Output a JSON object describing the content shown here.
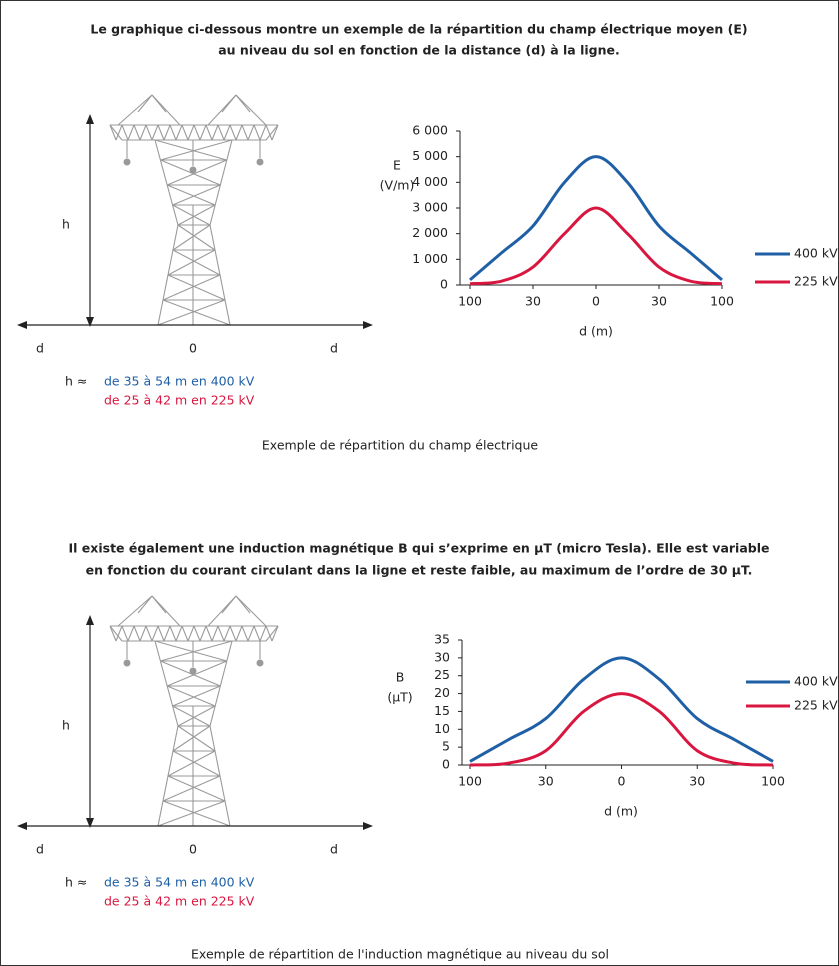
{
  "intro_1": [
    "Le graphique ci-dessous montre un exemple de la répartition du champ électrique moyen (E)",
    "au niveau du sol en fonction de la distance (d) à la ligne."
  ],
  "caption_1": "Exemple de répartition du champ électrique",
  "intro_2": [
    "Il existe également une induction magnétique B qui s’exprime en µT (micro Tesla). Elle est variable",
    "en fonction du courant circulant dans la ligne et reste faible, au maximum de l’ordre de 30 µT."
  ],
  "caption_2": "Exemple de répartition de l'induction magnétique au niveau du sol",
  "diagrams": [
    {
      "h": "h",
      "d_left": "d",
      "center": "0",
      "d_right": "d",
      "h_prefix": "h ≈",
      "h_400": "de 35 à 54 m en 400 kV",
      "h_225": "de 25 à 42 m en 225 kV"
    },
    {
      "h": "h",
      "d_left": "d",
      "center": "0",
      "d_right": "d",
      "h_prefix": "h ≈",
      "h_400": "de 35 à 54 m en 400 kV",
      "h_225": "de 25 à 42 m en 225 kV"
    }
  ],
  "chart_data": [
    {
      "type": "line",
      "ylabel": [
        "E",
        "(V/m)"
      ],
      "xlabel": "d (m)",
      "categories": [
        "100",
        null,
        "30",
        null,
        "0",
        null,
        "30",
        null,
        "100"
      ],
      "ylim": [
        0,
        6000
      ],
      "yticks": [
        0,
        {
          "value": 1000,
          "label": "1 000"
        },
        {
          "value": 2000,
          "label": "2 000"
        },
        {
          "value": 3000,
          "label": "3 000"
        },
        {
          "value": 4000,
          "label": "4 000"
        },
        {
          "value": 5000,
          "label": "5 000"
        },
        {
          "value": 6000,
          "label": "6 000"
        }
      ],
      "series": [
        {
          "name": "400 kV",
          "color": "#1f5fa6",
          "values": [
            200,
            1250,
            2300,
            4000,
            5000,
            4000,
            2300,
            1250,
            200
          ]
        },
        {
          "name": "225 kV",
          "color": "#d9163f",
          "values": [
            50,
            150,
            700,
            2000,
            3000,
            2000,
            700,
            150,
            50
          ]
        }
      ]
    },
    {
      "type": "line",
      "ylabel": [
        "B",
        "(µT)"
      ],
      "xlabel": "d (m)",
      "categories": [
        "100",
        null,
        "30",
        null,
        "0",
        null,
        "30",
        null,
        "100"
      ],
      "ylim": [
        0,
        35
      ],
      "yticks": [
        0,
        5,
        10,
        15,
        20,
        25,
        30,
        35
      ],
      "series": [
        {
          "name": "400 kV",
          "color": "#1f5fa6",
          "values": [
            1,
            7,
            13,
            24,
            30,
            24,
            13,
            7,
            1
          ]
        },
        {
          "name": "225 kV",
          "color": "#d9163f",
          "values": [
            0,
            0.5,
            4,
            15,
            20,
            15,
            4,
            0.5,
            0
          ]
        }
      ]
    }
  ]
}
